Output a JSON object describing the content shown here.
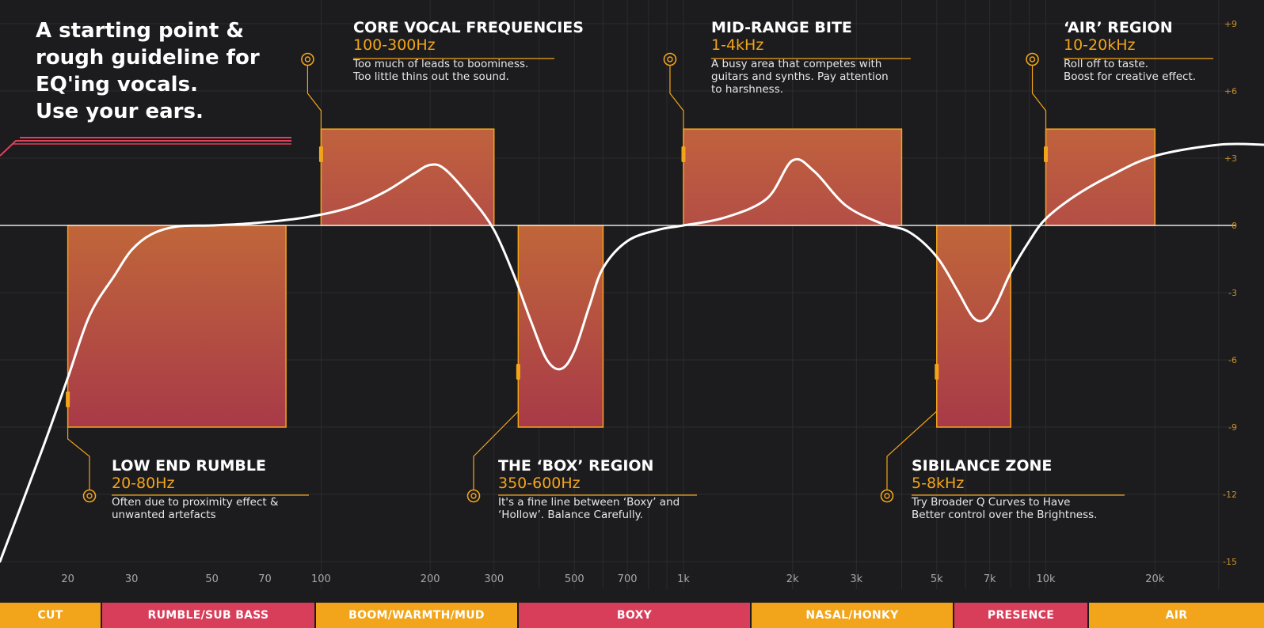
{
  "intro": {
    "lines": [
      "A starting point &",
      "rough guideline for",
      "EQ'ing vocals.",
      "Use your ears."
    ]
  },
  "colors": {
    "background": "#1c1b1d",
    "accent": "#f2a51a",
    "band_orange": "#f2a51a",
    "band_red": "#d83e5a",
    "curve": "#ffffff",
    "grid": "#2c2b2e"
  },
  "regions": [
    {
      "id": "low",
      "title": "LOW END RUMBLE",
      "range": "20-80Hz",
      "desc": [
        "Often due to proximity effect &",
        "unwanted artefacts"
      ]
    },
    {
      "id": "core",
      "title": "CORE VOCAL FREQUENCIES",
      "range": "100-300Hz",
      "desc": [
        "Too much of leads to boominess.",
        "Too little thins out the sound."
      ]
    },
    {
      "id": "box",
      "title": "THE ‘BOX’ REGION",
      "range": "350-600Hz",
      "desc": [
        "It's a fine line between ‘Boxy’ and",
        "‘Hollow’. Balance Carefully."
      ]
    },
    {
      "id": "mid",
      "title": "MID-RANGE BITE",
      "range": "1-4kHz",
      "desc": [
        "A busy area that competes with",
        "guitars and synths. Pay attention",
        "to harshness."
      ]
    },
    {
      "id": "sib",
      "title": "SIBILANCE ZONE",
      "range": "5-8kHz",
      "desc": [
        "Try Broader Q Curves to Have",
        "Better control over the Brightness."
      ]
    },
    {
      "id": "air",
      "title": "‘AIR’ REGION",
      "range": "10-20kHz",
      "desc": [
        "Roll off to taste.",
        "Boost for creative effect."
      ]
    }
  ],
  "bands": [
    {
      "label": "CUT",
      "color": "orange"
    },
    {
      "label": "RUMBLE/SUB BASS",
      "color": "red"
    },
    {
      "label": "BOOM/WARMTH/MUD",
      "color": "orange"
    },
    {
      "label": "BOXY",
      "color": "red"
    },
    {
      "label": "NASAL/HONKY",
      "color": "orange"
    },
    {
      "label": "PRESENCE",
      "color": "red"
    },
    {
      "label": "AIR",
      "color": "orange"
    }
  ],
  "chart_data": {
    "type": "area",
    "xscale": "log",
    "xlim": [
      13,
      40000
    ],
    "ylim": [
      -15,
      9
    ],
    "grid": true,
    "x_ticks": [
      {
        "value": 20,
        "label": "20"
      },
      {
        "value": 30,
        "label": "30"
      },
      {
        "value": 50,
        "label": "50"
      },
      {
        "value": 70,
        "label": "70"
      },
      {
        "value": 100,
        "label": "100"
      },
      {
        "value": 200,
        "label": "200"
      },
      {
        "value": 300,
        "label": "300"
      },
      {
        "value": 500,
        "label": "500"
      },
      {
        "value": 700,
        "label": "700"
      },
      {
        "value": 1000,
        "label": "1k"
      },
      {
        "value": 2000,
        "label": "2k"
      },
      {
        "value": 3000,
        "label": "3k"
      },
      {
        "value": 5000,
        "label": "5k"
      },
      {
        "value": 7000,
        "label": "7k"
      },
      {
        "value": 10000,
        "label": "10k"
      },
      {
        "value": 20000,
        "label": "20k"
      }
    ],
    "y_ticks": [
      {
        "value": 9,
        "label": "+9"
      },
      {
        "value": 6,
        "label": "+6"
      },
      {
        "value": 3,
        "label": "+3"
      },
      {
        "value": 0,
        "label": "0"
      },
      {
        "value": -3,
        "label": "-3"
      },
      {
        "value": -6,
        "label": "-6"
      },
      {
        "value": -9,
        "label": "-9"
      },
      {
        "value": -12,
        "label": "-12"
      },
      {
        "value": -15,
        "label": "-15"
      }
    ],
    "boxes": [
      {
        "region": "low",
        "x0": 20,
        "x1": 80,
        "gain": -9
      },
      {
        "region": "core",
        "x0": 100,
        "x1": 300,
        "gain": 4.3
      },
      {
        "region": "box",
        "x0": 350,
        "x1": 600,
        "gain": -9
      },
      {
        "region": "mid",
        "x0": 1000,
        "x1": 4000,
        "gain": 4.3
      },
      {
        "region": "sib",
        "x0": 5000,
        "x1": 8000,
        "gain": -9
      },
      {
        "region": "air",
        "x0": 10000,
        "x1": 20000,
        "gain": 4.3
      }
    ],
    "curve": {
      "name": "",
      "x": [
        13,
        17,
        20,
        23,
        27,
        30,
        34,
        40,
        50,
        65,
        90,
        120,
        150,
        180,
        200,
        220,
        260,
        300,
        340,
        380,
        420,
        460,
        500,
        550,
        600,
        700,
        850,
        1000,
        1300,
        1700,
        2000,
        2300,
        2800,
        3500,
        4200,
        5000,
        5700,
        6300,
        6800,
        7300,
        8000,
        9000,
        10000,
        12000,
        15000,
        20000,
        30000,
        40000
      ],
      "y": [
        -15,
        -10,
        -6.8,
        -4,
        -2.2,
        -1.1,
        -0.4,
        -0.05,
        0,
        0.1,
        0.35,
        0.8,
        1.5,
        2.3,
        2.7,
        2.5,
        1.2,
        -0.2,
        -2.2,
        -4.3,
        -6,
        -6.4,
        -5.6,
        -3.6,
        -1.9,
        -0.7,
        -0.2,
        0,
        0.35,
        1.2,
        2.9,
        2.4,
        0.9,
        0.1,
        -0.3,
        -1.4,
        -2.9,
        -4.1,
        -4.2,
        -3.5,
        -2.1,
        -0.7,
        0.3,
        1.3,
        2.2,
        3.1,
        3.6,
        3.6
      ]
    }
  }
}
